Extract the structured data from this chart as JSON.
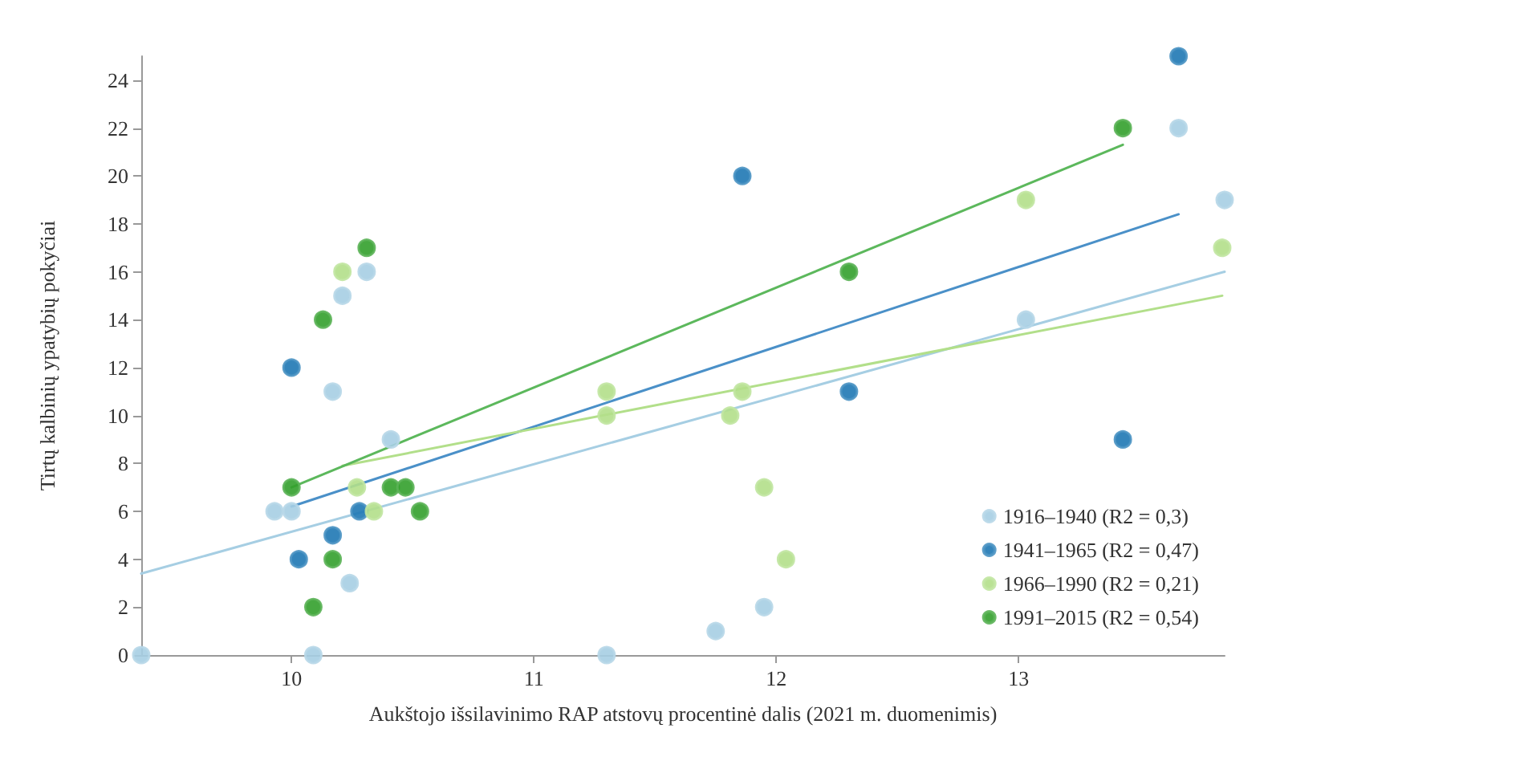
{
  "chart_data": {
    "type": "scatter",
    "xlabel": "Aukštojo išsilavinimo RAP atstovų procentinė dalis (2021 m. duomenimis)",
    "ylabel": "Tirtų kalbinių ypatybių pokyčiai",
    "xlim": [
      9.38,
      13.85
    ],
    "xticks": [
      10,
      11,
      12,
      13
    ],
    "ylim": [
      0,
      25
    ],
    "yticks": [
      0,
      2,
      4,
      6,
      8,
      10,
      12,
      14,
      16,
      18,
      20,
      22,
      24
    ],
    "grid": false,
    "legend": "bottom right",
    "marker": "circle",
    "series": [
      {
        "name": "1916–1940 (R2 = 0,3)",
        "color": "#a6cee3",
        "x": [
          9.38,
          9.93,
          10.0,
          10.09,
          10.17,
          10.21,
          10.24,
          10.31,
          10.41,
          11.3,
          11.75,
          11.95,
          13.03,
          13.66,
          13.85
        ],
        "values": [
          0,
          6,
          6,
          0,
          11,
          15,
          3,
          16,
          9,
          0,
          1,
          2,
          14,
          22,
          19
        ]
      },
      {
        "name": "1941–1965 (R2 = 0,47)",
        "color": "#1f78b4",
        "x": [
          10.0,
          10.03,
          10.17,
          10.28,
          11.86,
          12.3,
          13.66,
          13.43
        ],
        "values": [
          12,
          4,
          5,
          6,
          20,
          11,
          25,
          9
        ]
      },
      {
        "name": "1966–1990 (R2 = 0,21)",
        "color": "#b2df8a",
        "x": [
          10.21,
          10.27,
          10.34,
          11.3,
          11.3,
          11.86,
          11.81,
          11.95,
          12.04,
          13.03,
          13.84
        ],
        "values": [
          16,
          7,
          6,
          11,
          10,
          11,
          10,
          7,
          4,
          19,
          17
        ]
      },
      {
        "name": "1991–2015 (R2 = 0,54)",
        "color": "#33a02c",
        "x": [
          10.0,
          10.09,
          10.13,
          10.17,
          10.31,
          10.41,
          10.47,
          10.53,
          12.3,
          13.43
        ],
        "values": [
          7,
          2,
          14,
          4,
          17,
          7,
          7,
          6,
          16,
          22
        ]
      },
      {
        "type": "line",
        "marker": "none",
        "color": "#a6cee3",
        "x": [
          9.38,
          13.85
        ],
        "values": [
          3.4,
          16.0
        ]
      },
      {
        "type": "line",
        "marker": "none",
        "color": "#4a90c8",
        "x": [
          10.0,
          13.66
        ],
        "values": [
          6.2,
          18.4
        ]
      },
      {
        "type": "line",
        "marker": "none",
        "color": "#b2df8a",
        "x": [
          10.21,
          13.84
        ],
        "values": [
          7.9,
          15.0
        ]
      },
      {
        "type": "line",
        "marker": "none",
        "color": "#5cb85c",
        "x": [
          10.0,
          13.43
        ],
        "values": [
          7.0,
          21.3
        ]
      }
    ]
  }
}
